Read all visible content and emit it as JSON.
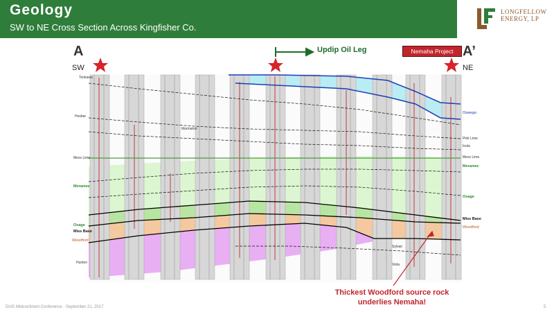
{
  "header": {
    "title": "Geology",
    "subtitle": "SW to NE Cross Section Across Kingfisher Co.",
    "logo_text": "LONGFELLOW ENERGY, LP"
  },
  "section": {
    "label_left": "A",
    "label_right": "A’",
    "dir_left": "SW",
    "dir_right": "NE",
    "updip_label": "Updip Oil Leg",
    "nemaha_label": "Nemaha Project",
    "callout": "Thickest Woodford source rock underlies Nemaha!"
  },
  "formations_left": {
    "tonkawa": "Tonkawa",
    "hoxbar": "Hoxbar",
    "marmaton": "Marmaton",
    "mess_lime": "Mess Lime",
    "meramec": "Meramec",
    "osage": "Osage",
    "miss_base": "Miss Base",
    "woodford": "Woodford",
    "hunton": "Hunton"
  },
  "formations_right": {
    "oswego": "Oswego",
    "pink_lime": "Pink Lime",
    "inola": "Inola",
    "mess_lime": "Mess Lime",
    "meramec": "Meramec",
    "osage": "Osage",
    "miss_base": "Miss Base",
    "woodford": "Woodford"
  },
  "formations_mid": {
    "marmaton": "Marmaton",
    "sylvan": "Sylvan",
    "viola": "Viola"
  },
  "footer": {
    "conference": "DUG Midcontinent Conference - September 21, 2017",
    "page": "5"
  },
  "colors": {
    "header_green": "#2f7d3a",
    "oswego_cyan": "#aee9f2",
    "meramec_green": "#d8f5cc",
    "osage_green": "#c6edb4",
    "woodford_orange": "#f4c9a0",
    "hunton_purple": "#e6a6f2",
    "star_red": "#d9232a"
  }
}
